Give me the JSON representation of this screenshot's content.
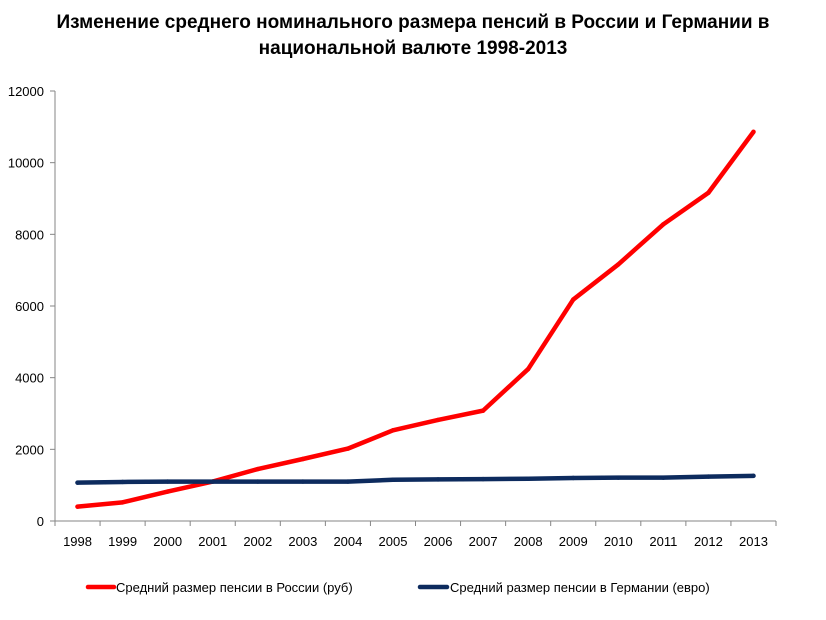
{
  "chart_data": {
    "type": "line",
    "title": "Изменение среднего номинального размера пенсий в России и Германии в национальной валюте 1998-2013",
    "title_lines": [
      "Изменение среднего номинального размера пенсий в России и Германии в",
      "национальной валюте 1998-2013"
    ],
    "xlabel": "",
    "ylabel": "",
    "categories": [
      "1998",
      "1999",
      "2000",
      "2001",
      "2002",
      "2003",
      "2004",
      "2005",
      "2006",
      "2007",
      "2008",
      "2009",
      "2010",
      "2011",
      "2012",
      "2013"
    ],
    "y_ticks": [
      0,
      2000,
      4000,
      6000,
      8000,
      10000,
      12000
    ],
    "ylim": [
      0,
      12000
    ],
    "grid": false,
    "legend_position": "bottom",
    "series": [
      {
        "name": "Средний размер пенсии в России (руб)",
        "color": "#ff0000",
        "values": [
          400,
          520,
          820,
          1100,
          1450,
          1730,
          2020,
          2530,
          2820,
          3080,
          4240,
          6180,
          7160,
          8280,
          9160,
          10860
        ]
      },
      {
        "name": "Средний размер пенсии в Германии (евро)",
        "color": "#0d2b5e",
        "values": [
          1070,
          1090,
          1100,
          1100,
          1100,
          1100,
          1100,
          1150,
          1160,
          1170,
          1180,
          1200,
          1210,
          1210,
          1240,
          1260
        ]
      }
    ]
  }
}
